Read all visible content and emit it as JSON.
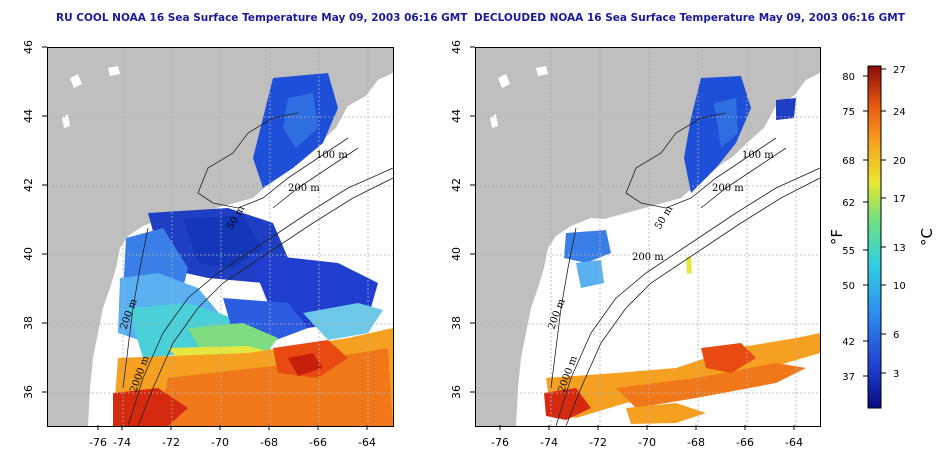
{
  "left_panel": {
    "title": "RU COOL NOAA 16 Sea Surface Temperature May 09, 2003 06:16 GMT",
    "contour_labels": [
      "100 m",
      "200 m",
      "50 m",
      "200 m",
      "2000 m"
    ]
  },
  "right_panel": {
    "title": "DECLOUDED NOAA 16 Sea Surface Temperature May 09, 2003 06:16 GMT",
    "contour_labels": [
      "100 m",
      "200 m",
      "50 m",
      "200 m",
      "200 m",
      "2000 m"
    ]
  },
  "axes": {
    "x_ticks": [
      "-76",
      "-74",
      "-72",
      "-70",
      "-68",
      "-66",
      "-64"
    ],
    "y_ticks": [
      "36",
      "38",
      "40",
      "42",
      "44",
      "46"
    ]
  },
  "colorbar": {
    "fahrenheit_label": "°F",
    "celsius_label": "°C",
    "fahrenheit_ticks": [
      "80",
      "75",
      "68",
      "62",
      "55",
      "50",
      "42",
      "37"
    ],
    "celsius_ticks": [
      "27",
      "24",
      "20",
      "17",
      "13",
      "10",
      "6",
      "3"
    ]
  },
  "colors": {
    "land": "#bfbfbf",
    "title": "#1a1a9c",
    "grid": "#b0b0b0"
  }
}
